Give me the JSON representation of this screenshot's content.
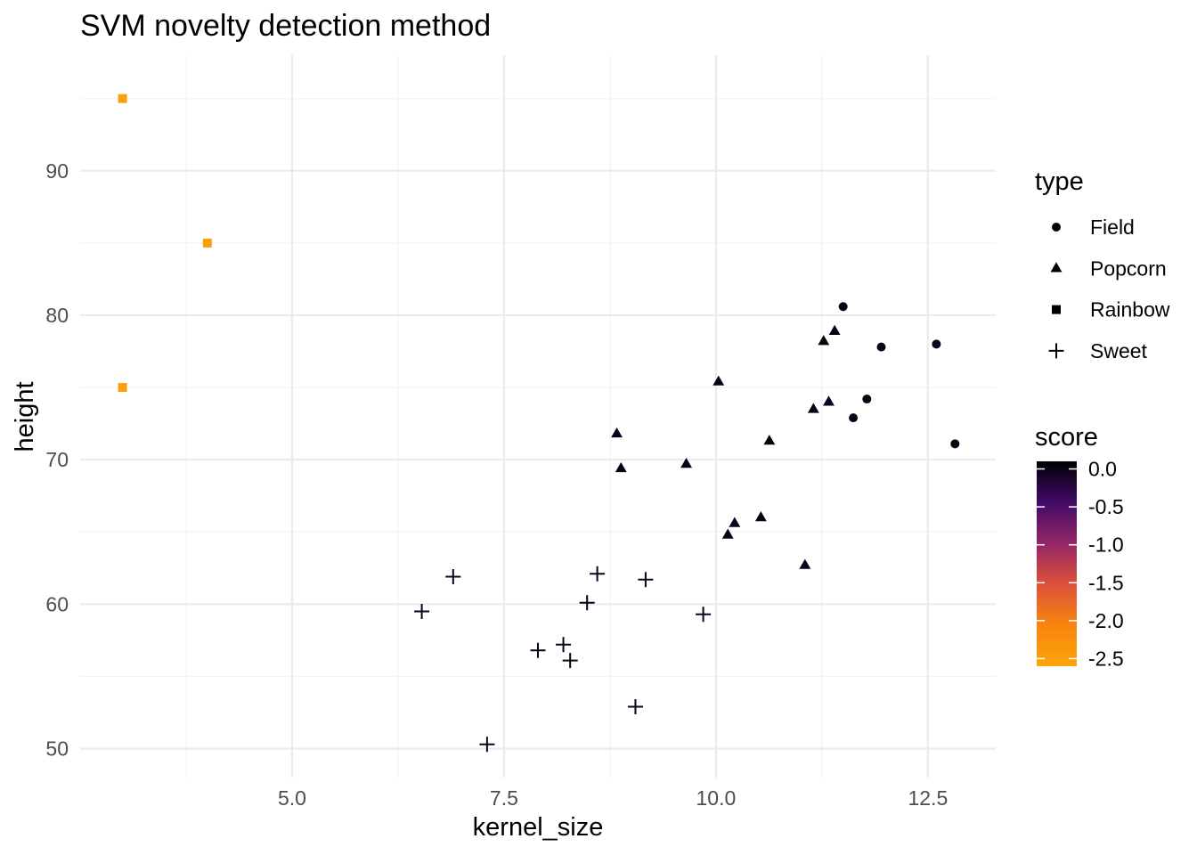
{
  "chart_data": {
    "type": "scatter",
    "title": "SVM novelty detection method",
    "xlabel": "kernel_size",
    "ylabel": "height",
    "xlim": [
      2.5,
      13.3
    ],
    "ylim": [
      48,
      98
    ],
    "x_ticks": [
      5.0,
      7.5,
      10.0,
      12.5
    ],
    "x_tick_labels": [
      "5.0",
      "7.5",
      "10.0",
      "12.5"
    ],
    "y_ticks": [
      50,
      60,
      70,
      80,
      90
    ],
    "y_tick_labels": [
      "50",
      "60",
      "70",
      "80",
      "90"
    ],
    "grid": true,
    "legend_placement": "right",
    "shape_legend": {
      "title": "type",
      "entries": [
        {
          "label": "Field",
          "shape": "circle"
        },
        {
          "label": "Popcorn",
          "shape": "triangle"
        },
        {
          "label": "Rainbow",
          "shape": "square"
        },
        {
          "label": "Sweet",
          "shape": "plus"
        }
      ]
    },
    "color_legend": {
      "title": "score",
      "breaks": [
        0.0,
        -0.5,
        -1.0,
        -1.5,
        -2.0,
        -2.5
      ],
      "break_labels": [
        "0.0",
        "-0.5",
        "-1.0",
        "-1.5",
        "-2.0",
        "-2.5"
      ],
      "range": [
        -2.6,
        0.1
      ],
      "colors": [
        "#fca50a",
        "#f8850f",
        "#dd513a",
        "#932667",
        "#420a68",
        "#000004"
      ]
    },
    "series": [
      {
        "name": "Field",
        "shape": "circle",
        "points": [
          {
            "x": 11.5,
            "y": 80.6,
            "score": 0.0
          },
          {
            "x": 11.95,
            "y": 77.8,
            "score": 0.0
          },
          {
            "x": 12.6,
            "y": 78.0,
            "score": 0.0
          },
          {
            "x": 11.78,
            "y": 74.2,
            "score": 0.0
          },
          {
            "x": 11.62,
            "y": 72.9,
            "score": 0.0
          },
          {
            "x": 12.82,
            "y": 71.1,
            "score": 0.0
          }
        ]
      },
      {
        "name": "Popcorn",
        "shape": "triangle",
        "points": [
          {
            "x": 11.4,
            "y": 78.9,
            "score": 0.0
          },
          {
            "x": 11.27,
            "y": 78.2,
            "score": 0.0
          },
          {
            "x": 10.03,
            "y": 75.4,
            "score": 0.0
          },
          {
            "x": 11.33,
            "y": 74.0,
            "score": 0.0
          },
          {
            "x": 11.15,
            "y": 73.5,
            "score": 0.0
          },
          {
            "x": 8.83,
            "y": 71.8,
            "score": 0.0
          },
          {
            "x": 10.63,
            "y": 71.3,
            "score": 0.0
          },
          {
            "x": 8.88,
            "y": 69.4,
            "score": 0.0
          },
          {
            "x": 9.65,
            "y": 69.7,
            "score": 0.0
          },
          {
            "x": 10.22,
            "y": 65.6,
            "score": 0.0
          },
          {
            "x": 10.53,
            "y": 66.0,
            "score": 0.0
          },
          {
            "x": 10.14,
            "y": 64.8,
            "score": 0.0
          },
          {
            "x": 11.05,
            "y": 62.7,
            "score": 0.0
          }
        ]
      },
      {
        "name": "Rainbow",
        "shape": "square",
        "points": [
          {
            "x": 3.0,
            "y": 95.0,
            "score": -2.5
          },
          {
            "x": 4.0,
            "y": 85.0,
            "score": -2.5
          },
          {
            "x": 3.0,
            "y": 75.0,
            "score": -2.5
          }
        ]
      },
      {
        "name": "Sweet",
        "shape": "plus",
        "points": [
          {
            "x": 6.9,
            "y": 61.9,
            "score": 0.0
          },
          {
            "x": 8.6,
            "y": 62.1,
            "score": 0.0
          },
          {
            "x": 9.17,
            "y": 61.7,
            "score": 0.0
          },
          {
            "x": 6.53,
            "y": 59.5,
            "score": 0.0
          },
          {
            "x": 8.48,
            "y": 60.1,
            "score": 0.0
          },
          {
            "x": 9.85,
            "y": 59.3,
            "score": 0.0
          },
          {
            "x": 8.2,
            "y": 57.2,
            "score": 0.0
          },
          {
            "x": 7.9,
            "y": 56.8,
            "score": 0.0
          },
          {
            "x": 8.28,
            "y": 56.1,
            "score": 0.0
          },
          {
            "x": 9.05,
            "y": 52.9,
            "score": 0.0
          },
          {
            "x": 7.3,
            "y": 50.3,
            "score": 0.0
          }
        ]
      }
    ]
  }
}
